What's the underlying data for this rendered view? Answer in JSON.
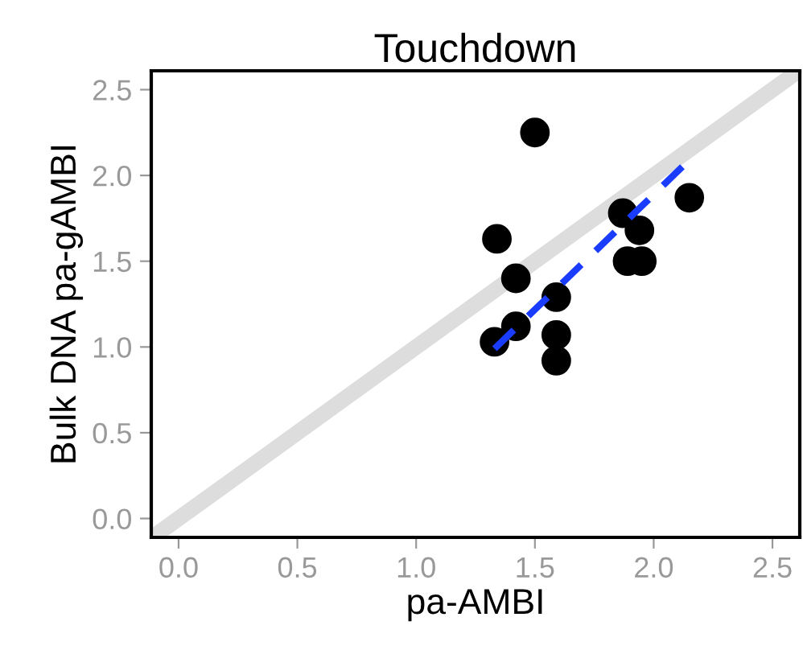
{
  "chart_data": {
    "type": "scatter",
    "title": "Touchdown",
    "xlabel": "pa-AMBI",
    "ylabel": "Bulk DNA pa-gAMBI",
    "xlim": [
      -0.115,
      2.615
    ],
    "ylim": [
      -0.11,
      2.61
    ],
    "xticks": [
      {
        "value": 0,
        "label": "0.0"
      },
      0.5,
      {
        "value": 1,
        "label": "1.0"
      },
      1.5,
      {
        "value": 2,
        "label": "2.0"
      },
      2.5
    ],
    "yticks": [
      {
        "value": 0,
        "label": "0.0"
      },
      0.5,
      {
        "value": 1,
        "label": "1.0"
      },
      1.5,
      {
        "value": 2,
        "label": "2.0"
      },
      2.5
    ],
    "grid": false,
    "legend": false,
    "series": [
      {
        "type": "line",
        "color": "#dddddd",
        "line_style": "solid",
        "x": [
          -0.1,
          2.6
        ],
        "values": [
          -0.1,
          2.6
        ]
      },
      {
        "color": "#000000",
        "marker": "circle",
        "x": [
          1.5,
          1.34,
          1.42,
          1.33,
          1.42,
          1.59,
          1.59,
          1.59,
          1.87,
          1.94,
          1.89,
          1.95,
          2.15
        ],
        "values": [
          2.25,
          1.63,
          1.4,
          1.03,
          1.12,
          1.29,
          1.07,
          0.92,
          1.78,
          1.68,
          1.5,
          1.5,
          1.87
        ]
      },
      {
        "type": "line",
        "color": "#1a3cff",
        "line_style": "dashed",
        "x": [
          1.33,
          2.15
        ],
        "values": [
          0.99,
          2.09
        ]
      }
    ]
  }
}
